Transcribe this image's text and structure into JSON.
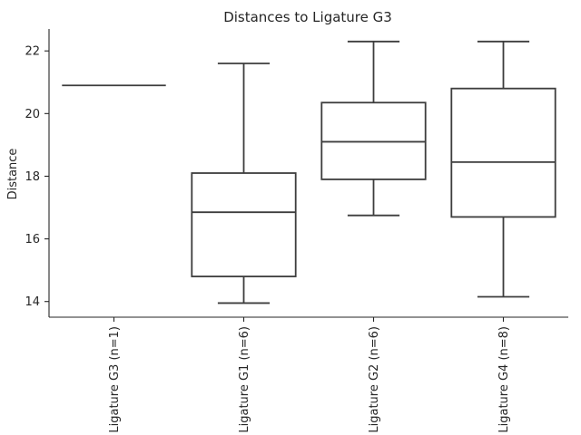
{
  "chart_data": {
    "type": "box",
    "title": "Distances to Ligature G3",
    "xlabel": "",
    "ylabel": "Distance",
    "ylim": [
      13.5,
      22.7
    ],
    "yticks": [
      14,
      16,
      18,
      20,
      22
    ],
    "grid": false,
    "categories": [
      "Ligature G3 (n=1)",
      "Ligature G1 (n=6)",
      "Ligature G2 (n=6)",
      "Ligature G4 (n=8)"
    ],
    "boxes": [
      {
        "whisker_low": 20.9,
        "q1": 20.9,
        "median": 20.9,
        "q3": 20.9,
        "whisker_high": 20.9
      },
      {
        "whisker_low": 13.95,
        "q1": 14.8,
        "median": 16.85,
        "q3": 18.1,
        "whisker_high": 21.6
      },
      {
        "whisker_low": 16.75,
        "q1": 17.9,
        "median": 19.1,
        "q3": 20.35,
        "whisker_high": 22.3
      },
      {
        "whisker_low": 14.15,
        "q1": 16.7,
        "median": 18.45,
        "q3": 20.8,
        "whisker_high": 22.3
      }
    ],
    "colors": {
      "line": "#3d3d3d",
      "axis": "#262626",
      "text": "#262626"
    }
  }
}
